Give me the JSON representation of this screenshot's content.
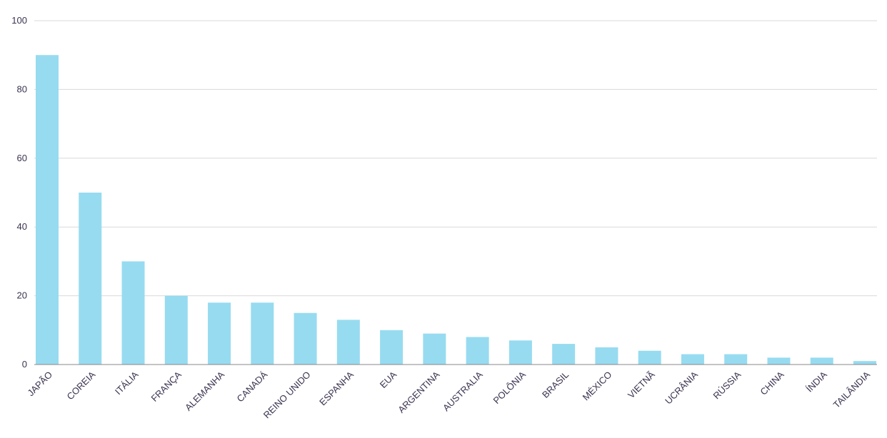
{
  "chart_data": {
    "type": "bar",
    "title": "",
    "xlabel": "",
    "ylabel": "",
    "ylim": [
      0,
      100
    ],
    "yticks": [
      0,
      20,
      40,
      60,
      80,
      100
    ],
    "grid": true,
    "bar_color": "#97dbf0",
    "categories": [
      "JAPÃO",
      "COREIA",
      "ITÁLIA",
      "FRANÇA",
      "ALEMANHA",
      "CANADÁ",
      "REINO UNIDO",
      "ESPANHA",
      "EUA",
      "ARGENTINA",
      "AUSTRALIA",
      "POLÔNIA",
      "BRASIL",
      "MÉXICO",
      "VIETNÃ",
      "UCRÂNIA",
      "RÚSSIA",
      "CHINA",
      "ÍNDIA",
      "TAILÂNDIA"
    ],
    "values": [
      90,
      50,
      30,
      20,
      18,
      18,
      15,
      13,
      10,
      9,
      8,
      7,
      6,
      5,
      4,
      3,
      3,
      2,
      2,
      1
    ]
  }
}
